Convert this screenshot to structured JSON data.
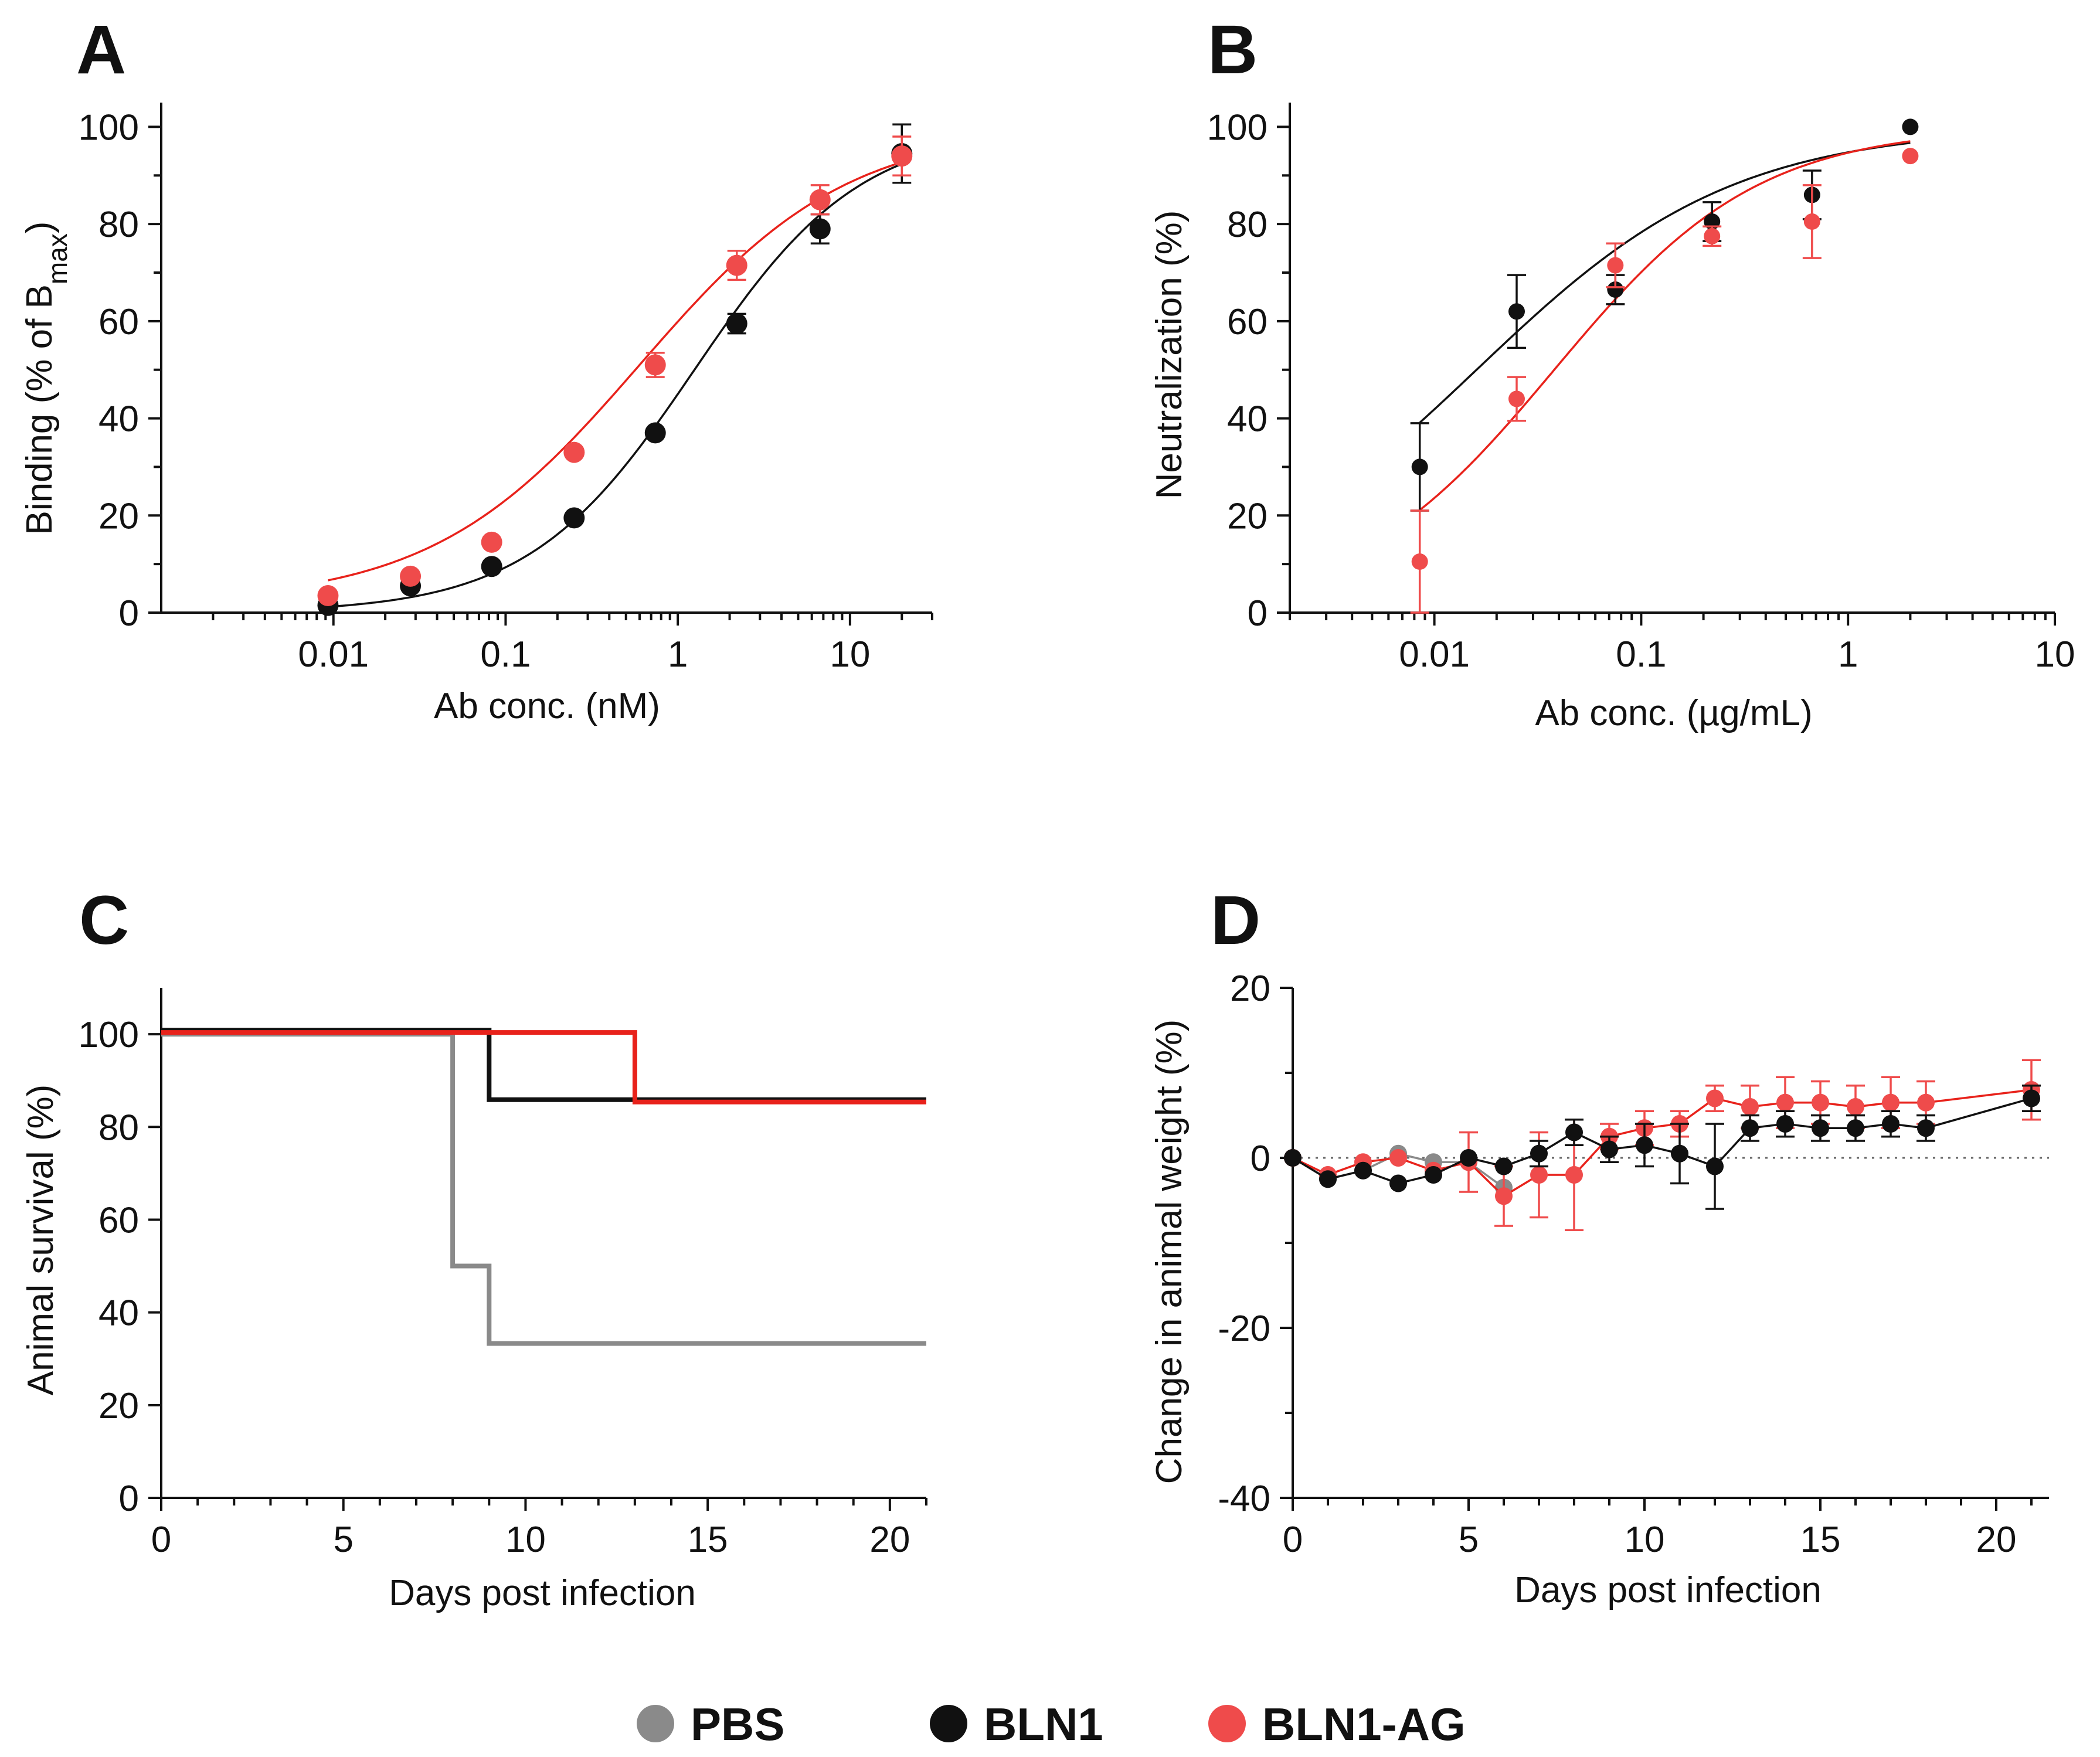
{
  "colors": {
    "PBS": "#8a8a8a",
    "BLN1": "#111111",
    "BLN1-AG": "#ef4b4b",
    "BLN1-AG_line": "#e8221b"
  },
  "legend": [
    {
      "label": "PBS",
      "color": "#8a8a8a"
    },
    {
      "label": "BLN1",
      "color": "#111111"
    },
    {
      "label": "BLN1-AG",
      "color": "#ef4b4b"
    }
  ],
  "chart_data": [
    {
      "panel": "A",
      "type": "scatter",
      "xscale": "log",
      "xlabel": "Ab conc. (nM)",
      "ylabel": {
        "main": "Binding (% of B",
        "sub": "max",
        "end": ")"
      },
      "xlim": [
        0.001,
        30
      ],
      "ylim": [
        0,
        105
      ],
      "xticks": [
        0.01,
        0.1,
        1,
        10
      ],
      "xtick_labels": [
        "0.01",
        "0.1",
        "1",
        "10"
      ],
      "yticks": [
        0,
        20,
        40,
        60,
        80,
        100
      ],
      "ytick_labels": [
        "0",
        "20",
        "40",
        "60",
        "80",
        "100"
      ],
      "series": [
        {
          "name": "BLN1",
          "x": [
            0.0093,
            0.028,
            0.083,
            0.25,
            0.74,
            2.2,
            6.7,
            20
          ],
          "y": [
            1.5,
            5.5,
            9.5,
            19.5,
            37,
            59.5,
            79,
            94.5
          ],
          "err": [
            0,
            0,
            0,
            0,
            0,
            2,
            3,
            6
          ],
          "fit": {
            "ec50": 1.25,
            "hill": 0.9,
            "top": 100,
            "bottom": 0
          }
        },
        {
          "name": "BLN1-AG",
          "x": [
            0.0093,
            0.028,
            0.083,
            0.25,
            0.74,
            2.2,
            6.7,
            20
          ],
          "y": [
            3.5,
            7.5,
            14.5,
            33,
            51,
            71.5,
            85,
            94
          ],
          "err": [
            0,
            0,
            0,
            0,
            2.5,
            3,
            3,
            4
          ],
          "fit": {
            "ec50": 0.6,
            "hill": 0.72,
            "top": 100,
            "bottom": 2
          }
        }
      ]
    },
    {
      "panel": "B",
      "type": "scatter",
      "xscale": "log",
      "xlabel": "Ab conc. (µg/mL)",
      "ylabel": "Neutralization (%)",
      "xlim": [
        0.002,
        10
      ],
      "ylim": [
        0,
        105
      ],
      "xticks": [
        0.01,
        0.1,
        1,
        10
      ],
      "xtick_labels": [
        "0.01",
        "0.1",
        "1",
        "10"
      ],
      "yticks": [
        0,
        20,
        40,
        60,
        80,
        100
      ],
      "ytick_labels": [
        "0",
        "20",
        "40",
        "60",
        "80",
        "100"
      ],
      "series": [
        {
          "name": "BLN1",
          "x": [
            0.0085,
            0.025,
            0.075,
            0.22,
            0.67,
            2.0
          ],
          "y": [
            30,
            62,
            66.5,
            80.5,
            86,
            100
          ],
          "err": [
            9,
            7.5,
            3,
            4,
            5,
            0
          ],
          "fit": {
            "ec50": 0.016,
            "hill": 0.7,
            "top": 100,
            "bottom": 0,
            "from": 0.0085,
            "to": 2.0
          }
        },
        {
          "name": "BLN1-AG",
          "x": [
            0.0085,
            0.025,
            0.075,
            0.22,
            0.67,
            2.0
          ],
          "y": [
            10.5,
            44,
            71.5,
            77.5,
            80.5,
            94
          ],
          "err": [
            10.5,
            4.5,
            4.5,
            2,
            7.5,
            0
          ],
          "fit": {
            "ec50": 0.038,
            "hill": 0.88,
            "top": 100,
            "bottom": 0,
            "from": 0.0085,
            "to": 2.0
          }
        }
      ]
    },
    {
      "panel": "C",
      "type": "line",
      "subtype": "step",
      "xlabel": "Days post infection",
      "ylabel": "Animal survival (%)",
      "xlim": [
        0,
        21
      ],
      "ylim": [
        0,
        110
      ],
      "xticks": [
        0,
        5,
        10,
        15,
        20
      ],
      "xtick_labels": [
        "0",
        "5",
        "10",
        "15",
        "20"
      ],
      "yticks": [
        0,
        20,
        40,
        60,
        80,
        100
      ],
      "ytick_labels": [
        "0",
        "20",
        "40",
        "60",
        "80",
        "100"
      ],
      "series": [
        {
          "name": "PBS",
          "x": [
            0,
            8,
            8,
            9,
            9,
            21
          ],
          "y": [
            100,
            100,
            50,
            50,
            33.3,
            33.3
          ]
        },
        {
          "name": "BLN1",
          "x": [
            0,
            9,
            9,
            21
          ],
          "y": [
            100,
            100,
            85,
            85
          ]
        },
        {
          "name": "BLN1-AG",
          "x": [
            0,
            13,
            13,
            21
          ],
          "y": [
            100,
            100,
            85,
            85
          ]
        }
      ]
    },
    {
      "panel": "D",
      "type": "line",
      "xlabel": "Days post infection",
      "ylabel": "Change in animal weight (%)",
      "xlim": [
        0,
        21.5
      ],
      "ylim": [
        -40,
        20
      ],
      "xticks": [
        0,
        5,
        10,
        15,
        20
      ],
      "xtick_labels": [
        "0",
        "5",
        "10",
        "15",
        "20"
      ],
      "yticks": [
        -40,
        -20,
        0,
        20
      ],
      "ytick_labels": [
        "-40",
        "-20",
        "0",
        "20"
      ],
      "reference_line": 0,
      "series": [
        {
          "name": "PBS",
          "x": [
            0,
            1,
            2,
            3,
            4,
            5,
            6
          ],
          "y": [
            0,
            -2.5,
            -1.5,
            0.5,
            -0.5,
            -0.5,
            -3.5
          ],
          "err": [
            0,
            0,
            0,
            0,
            0,
            0,
            0
          ]
        },
        {
          "name": "BLN1-AG",
          "x": [
            0,
            1,
            2,
            3,
            4,
            5,
            6,
            7,
            8,
            9,
            10,
            11,
            12,
            13,
            14,
            15,
            16,
            17,
            18,
            21
          ],
          "y": [
            0,
            -2,
            -0.5,
            0,
            -1.5,
            -0.5,
            -4.5,
            -2,
            -2,
            2.5,
            3.5,
            4,
            7,
            6,
            6.5,
            6.5,
            6,
            6.5,
            6.5,
            8
          ],
          "err": [
            0,
            0,
            0,
            0,
            0,
            3.5,
            3.5,
            5,
            6.5,
            1.5,
            2,
            1.5,
            1.5,
            2.5,
            3,
            2.5,
            2.5,
            3,
            2.5,
            3.5
          ]
        },
        {
          "name": "BLN1",
          "x": [
            0,
            1,
            2,
            3,
            4,
            5,
            6,
            7,
            8,
            9,
            10,
            11,
            12,
            13,
            14,
            15,
            16,
            17,
            18,
            21
          ],
          "y": [
            0,
            -2.5,
            -1.5,
            -3,
            -2,
            0,
            -1,
            0.5,
            3,
            1,
            1.5,
            0.5,
            -1,
            3.5,
            4,
            3.5,
            3.5,
            4,
            3.5,
            7
          ],
          "err": [
            0,
            0,
            0,
            0,
            0,
            0,
            0,
            1.5,
            1.5,
            1.5,
            2.5,
            3.5,
            5,
            1.5,
            1.5,
            1.5,
            1.5,
            1.5,
            1.5,
            1.5
          ]
        }
      ]
    }
  ]
}
